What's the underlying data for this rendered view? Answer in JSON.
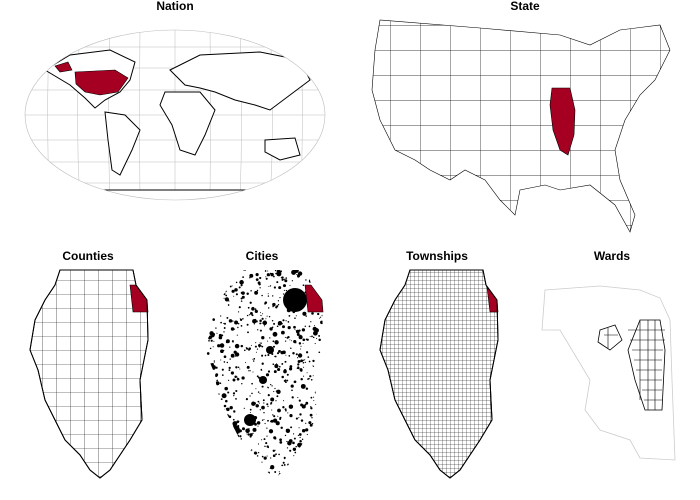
{
  "panels": [
    {
      "title": "Nation"
    },
    {
      "title": "State"
    },
    {
      "title": "Counties"
    },
    {
      "title": "Cities"
    },
    {
      "title": "Townships"
    },
    {
      "title": "Wards"
    }
  ]
}
